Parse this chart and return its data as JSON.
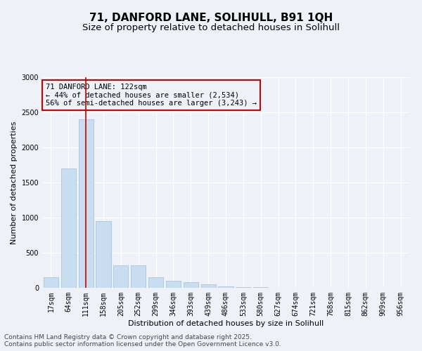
{
  "title_line1": "71, DANFORD LANE, SOLIHULL, B91 1QH",
  "title_line2": "Size of property relative to detached houses in Solihull",
  "xlabel": "Distribution of detached houses by size in Solihull",
  "ylabel": "Number of detached properties",
  "categories": [
    "17sqm",
    "64sqm",
    "111sqm",
    "158sqm",
    "205sqm",
    "252sqm",
    "299sqm",
    "346sqm",
    "393sqm",
    "439sqm",
    "486sqm",
    "533sqm",
    "580sqm",
    "627sqm",
    "674sqm",
    "721sqm",
    "768sqm",
    "815sqm",
    "862sqm",
    "909sqm",
    "956sqm"
  ],
  "values": [
    150,
    1700,
    2400,
    950,
    320,
    320,
    150,
    100,
    80,
    50,
    20,
    10,
    10,
    5,
    3,
    2,
    1,
    1,
    1,
    0,
    0
  ],
  "bar_color": "#c9ddf0",
  "bar_edge_color": "#a0bedd",
  "highlight_bar_index": 2,
  "highlight_line_color": "#cc0000",
  "ylim": [
    0,
    3000
  ],
  "yticks": [
    0,
    500,
    1000,
    1500,
    2000,
    2500,
    3000
  ],
  "annotation_title": "71 DANFORD LANE: 122sqm",
  "annotation_line1": "← 44% of detached houses are smaller (2,534)",
  "annotation_line2": "56% of semi-detached houses are larger (3,243) →",
  "annotation_box_color": "#cc0000",
  "footer_line1": "Contains HM Land Registry data © Crown copyright and database right 2025.",
  "footer_line2": "Contains public sector information licensed under the Open Government Licence v3.0.",
  "background_color": "#eef2f8",
  "grid_color": "#ffffff",
  "title_fontsize": 11,
  "subtitle_fontsize": 9.5,
  "axis_label_fontsize": 8,
  "tick_fontsize": 7,
  "annotation_fontsize": 7.5,
  "footer_fontsize": 6.5
}
